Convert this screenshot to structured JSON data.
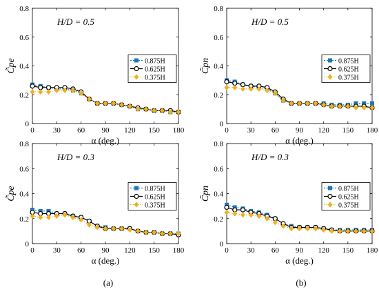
{
  "figure": {
    "caption_left": "(a)",
    "caption_right": "(b)",
    "x_axis_label": "α (deg.)"
  },
  "chart_data": [
    {
      "type": "line",
      "panel": "top-left",
      "annotation": "H/D = 0.5",
      "ylabel": "C̃pe",
      "ylim": [
        0,
        0.8
      ],
      "yticks": [
        0,
        0.2,
        0.4,
        0.6,
        0.8
      ],
      "xlim": [
        0,
        180
      ],
      "xticks": [
        0,
        30,
        60,
        90,
        120,
        150,
        180
      ],
      "xlabel": "α (deg.)",
      "grid": false,
      "legend": "right",
      "x": [
        0,
        10,
        20,
        30,
        40,
        50,
        60,
        70,
        80,
        90,
        100,
        110,
        120,
        130,
        140,
        150,
        160,
        170,
        180
      ],
      "series": [
        {
          "name": "0.875H",
          "color": "#1f77b4",
          "values": [
            0.27,
            0.26,
            0.25,
            0.24,
            0.24,
            0.23,
            0.21,
            0.17,
            0.14,
            0.14,
            0.14,
            0.13,
            0.12,
            0.1,
            0.1,
            0.09,
            0.09,
            0.08,
            0.08
          ]
        },
        {
          "name": "0.625H",
          "color": "#000000",
          "values": [
            0.26,
            0.25,
            0.25,
            0.25,
            0.25,
            0.24,
            0.22,
            0.17,
            0.14,
            0.14,
            0.14,
            0.13,
            0.12,
            0.11,
            0.1,
            0.09,
            0.09,
            0.09,
            0.08
          ]
        },
        {
          "name": "0.375H",
          "color": "#f0b020",
          "values": [
            0.22,
            0.22,
            0.22,
            0.23,
            0.23,
            0.23,
            0.21,
            0.17,
            0.14,
            0.14,
            0.14,
            0.13,
            0.12,
            0.1,
            0.1,
            0.09,
            0.09,
            0.08,
            0.08
          ]
        }
      ]
    },
    {
      "type": "line",
      "panel": "top-right",
      "annotation": "H/D = 0.5",
      "ylabel": "C̃pn",
      "ylim": [
        0,
        0.8
      ],
      "yticks": [
        0,
        0.2,
        0.4,
        0.6,
        0.8
      ],
      "xlim": [
        0,
        180
      ],
      "xticks": [
        0,
        30,
        60,
        90,
        120,
        150,
        180
      ],
      "xlabel": "α (deg.)",
      "grid": false,
      "legend": "right",
      "x": [
        0,
        10,
        20,
        30,
        40,
        50,
        60,
        70,
        80,
        90,
        100,
        110,
        120,
        130,
        140,
        150,
        160,
        170,
        180
      ],
      "series": [
        {
          "name": "0.875H",
          "color": "#1f77b4",
          "values": [
            0.3,
            0.29,
            0.27,
            0.26,
            0.25,
            0.24,
            0.21,
            0.16,
            0.14,
            0.14,
            0.14,
            0.14,
            0.14,
            0.13,
            0.13,
            0.13,
            0.14,
            0.14,
            0.14
          ]
        },
        {
          "name": "0.625H",
          "color": "#000000",
          "values": [
            0.29,
            0.28,
            0.27,
            0.26,
            0.26,
            0.25,
            0.22,
            0.17,
            0.14,
            0.14,
            0.14,
            0.14,
            0.13,
            0.12,
            0.12,
            0.12,
            0.12,
            0.12,
            0.11
          ]
        },
        {
          "name": "0.375H",
          "color": "#f0b020",
          "values": [
            0.25,
            0.25,
            0.24,
            0.24,
            0.24,
            0.23,
            0.21,
            0.16,
            0.14,
            0.14,
            0.14,
            0.14,
            0.13,
            0.12,
            0.12,
            0.12,
            0.11,
            0.11,
            0.11
          ]
        }
      ]
    },
    {
      "type": "line",
      "panel": "bottom-left",
      "annotation": "H/D = 0.3",
      "ylabel": "C̃pe",
      "ylim": [
        0,
        0.8
      ],
      "yticks": [
        0,
        0.2,
        0.4,
        0.6,
        0.8
      ],
      "xlim": [
        0,
        180
      ],
      "xticks": [
        0,
        30,
        60,
        90,
        120,
        150,
        180
      ],
      "xlabel": "α (deg.)",
      "grid": false,
      "legend": "right",
      "x": [
        0,
        10,
        20,
        30,
        40,
        50,
        60,
        70,
        80,
        90,
        100,
        110,
        120,
        130,
        140,
        150,
        160,
        170,
        180
      ],
      "series": [
        {
          "name": "0.875H",
          "color": "#1f77b4",
          "values": [
            0.27,
            0.26,
            0.26,
            0.24,
            0.24,
            0.22,
            0.21,
            0.18,
            0.14,
            0.13,
            0.12,
            0.12,
            0.12,
            0.1,
            0.09,
            0.09,
            0.08,
            0.08,
            0.08
          ]
        },
        {
          "name": "0.625H",
          "color": "#000000",
          "values": [
            0.25,
            0.24,
            0.24,
            0.24,
            0.24,
            0.22,
            0.21,
            0.18,
            0.14,
            0.12,
            0.12,
            0.12,
            0.12,
            0.1,
            0.09,
            0.09,
            0.08,
            0.08,
            0.07
          ]
        },
        {
          "name": "0.375H",
          "color": "#f0b020",
          "values": [
            0.22,
            0.21,
            0.21,
            0.22,
            0.23,
            0.21,
            0.19,
            0.15,
            0.13,
            0.12,
            0.12,
            0.12,
            0.11,
            0.1,
            0.09,
            0.09,
            0.08,
            0.08,
            0.08
          ]
        }
      ]
    },
    {
      "type": "line",
      "panel": "bottom-right",
      "annotation": "H/D = 0.3",
      "ylabel": "C̃pn",
      "ylim": [
        0,
        0.8
      ],
      "yticks": [
        0,
        0.2,
        0.4,
        0.6,
        0.8
      ],
      "xlim": [
        0,
        180
      ],
      "xticks": [
        0,
        30,
        60,
        90,
        120,
        150,
        180
      ],
      "xlabel": "α (deg.)",
      "grid": false,
      "legend": "right",
      "x": [
        0,
        10,
        20,
        30,
        40,
        50,
        60,
        70,
        80,
        90,
        100,
        110,
        120,
        130,
        140,
        150,
        160,
        170,
        180
      ],
      "series": [
        {
          "name": "0.875H",
          "color": "#1f77b4",
          "values": [
            0.31,
            0.29,
            0.28,
            0.26,
            0.25,
            0.23,
            0.2,
            0.16,
            0.14,
            0.13,
            0.13,
            0.13,
            0.12,
            0.11,
            0.11,
            0.11,
            0.11,
            0.11,
            0.11
          ]
        },
        {
          "name": "0.625H",
          "color": "#000000",
          "values": [
            0.29,
            0.27,
            0.27,
            0.25,
            0.24,
            0.22,
            0.2,
            0.16,
            0.13,
            0.13,
            0.13,
            0.13,
            0.12,
            0.11,
            0.1,
            0.1,
            0.1,
            0.1,
            0.1
          ]
        },
        {
          "name": "0.375H",
          "color": "#f0b020",
          "values": [
            0.25,
            0.24,
            0.23,
            0.23,
            0.22,
            0.2,
            0.17,
            0.14,
            0.12,
            0.12,
            0.12,
            0.12,
            0.11,
            0.1,
            0.1,
            0.1,
            0.1,
            0.1,
            0.1
          ]
        }
      ]
    }
  ]
}
